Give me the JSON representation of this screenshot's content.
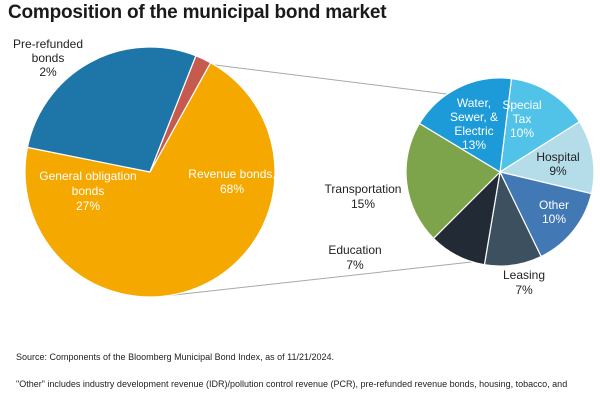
{
  "title": "Composition of the municipal bond market",
  "footer": {
    "source": "Source: Components of the Bloomberg Municipal Bond Index, as of 11/21/2024.",
    "note": "\"Other\" includes industry development revenue (IDR)/pollution control revenue (PCR), pre-refunded revenue bonds, housing, tobacco, and"
  },
  "colors": {
    "revenue": "#F5A800",
    "general_obligation": "#1E75A8",
    "pre_refunded": "#C65A4F",
    "water": "#1C9BD8",
    "special_tax": "#51C3E8",
    "hospital": "#B5DDE9",
    "other": "#4278B4",
    "leasing": "#3C505F",
    "education": "#222B35",
    "transportation": "#7DA44A"
  },
  "chart_data": [
    {
      "type": "pie",
      "title": "",
      "slices": [
        {
          "label_lines": [
            "Revenue bonds,",
            "68%"
          ],
          "value": 68,
          "color_key": "revenue"
        },
        {
          "label_lines": [
            "General obligation",
            "bonds",
            "27%"
          ],
          "value": 27,
          "color_key": "general_obligation"
        },
        {
          "label_lines": [
            "Pre-refunded",
            "bonds",
            "2%"
          ],
          "value": 2,
          "color_key": "pre_refunded"
        }
      ]
    },
    {
      "type": "pie",
      "title": "",
      "breakdown_of": "Revenue bonds",
      "slices": [
        {
          "label_lines": [
            "Special",
            "Tax",
            "10%"
          ],
          "value": 10,
          "color_key": "special_tax"
        },
        {
          "label_lines": [
            "Hospital",
            "9%"
          ],
          "value": 9,
          "color_key": "hospital"
        },
        {
          "label_lines": [
            "Other",
            "10%"
          ],
          "value": 10,
          "color_key": "other"
        },
        {
          "label_lines": [
            "Leasing",
            "7%"
          ],
          "value": 7,
          "color_key": "leasing"
        },
        {
          "label_lines": [
            "Education",
            "7%"
          ],
          "value": 7,
          "color_key": "education"
        },
        {
          "label_lines": [
            "Transportation",
            "15%"
          ],
          "value": 15,
          "color_key": "transportation"
        },
        {
          "label_lines": [
            "Water,",
            "Sewer, &",
            "Electric",
            "13%"
          ],
          "value": 13,
          "color_key": "water"
        }
      ]
    }
  ]
}
